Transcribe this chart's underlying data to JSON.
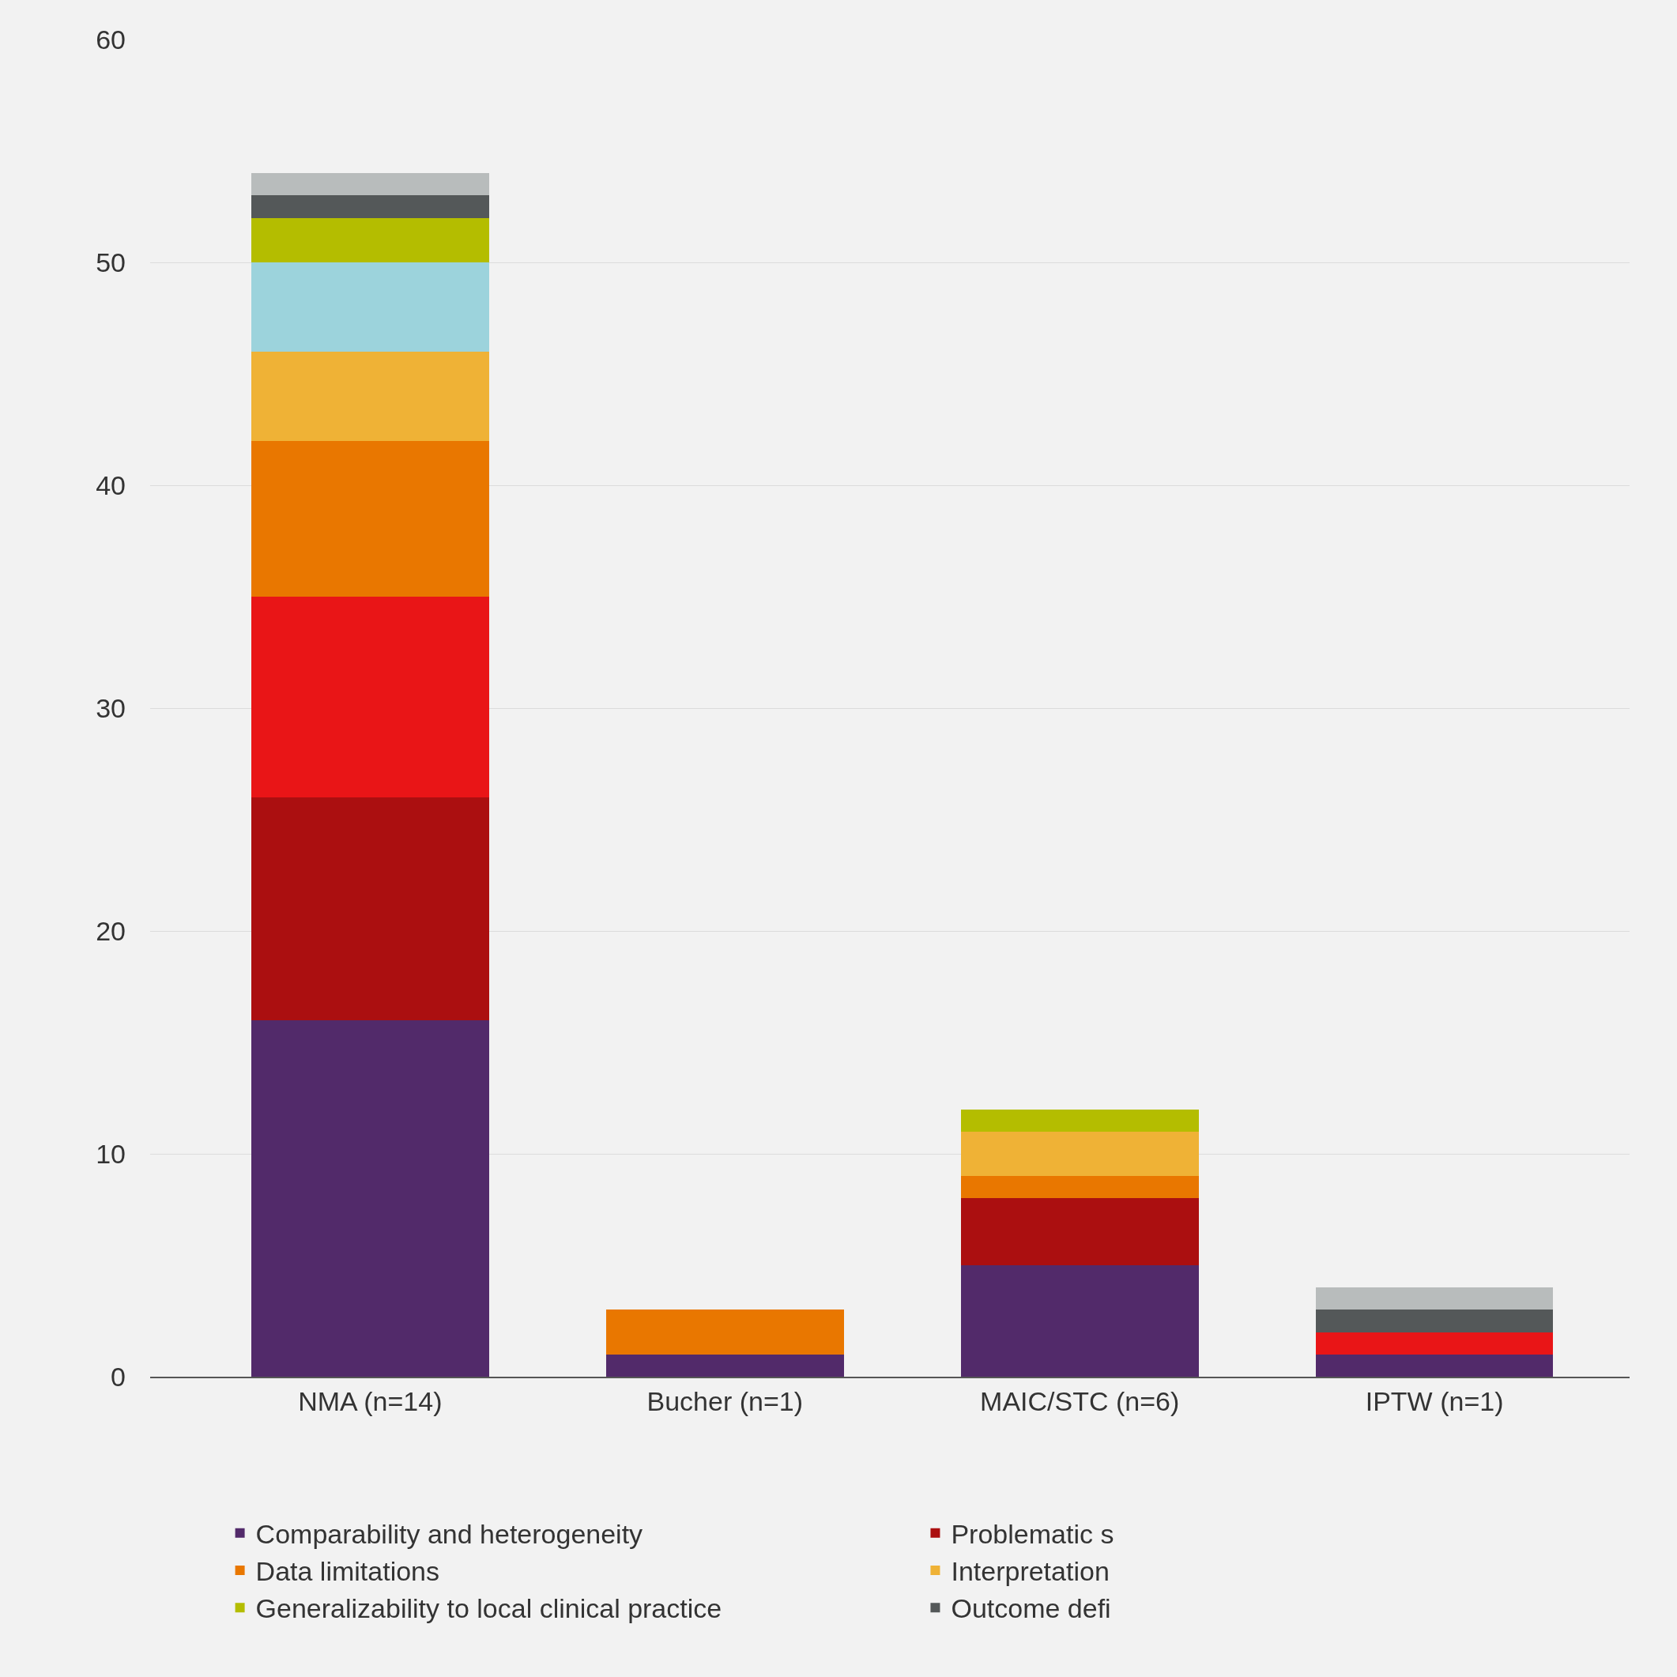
{
  "chart_data": {
    "type": "bar",
    "stacked": true,
    "categories": [
      "NMA (n=14)",
      "Bucher (n=1)",
      "MAIC/STC (n=6)",
      "IPTW (n=1)"
    ],
    "series": [
      {
        "name": "Comparability and heterogeneity",
        "color": "#522a6a",
        "values": [
          16,
          1,
          5,
          1
        ]
      },
      {
        "name": "Problematic s",
        "color": "#ab0f10",
        "values": [
          10,
          0,
          3,
          0
        ]
      },
      {
        "color": "#e91517",
        "values": [
          9,
          0,
          0,
          1
        ]
      },
      {
        "name": "Data limitations",
        "color": "#e97700",
        "values": [
          7,
          2,
          1,
          0
        ]
      },
      {
        "name": "Interpretation",
        "color": "#efb236",
        "values": [
          4,
          0,
          2,
          0
        ]
      },
      {
        "color": "#9cd3dc",
        "values": [
          4,
          0,
          0,
          0
        ]
      },
      {
        "name": "Generalizability to local clinical practice",
        "color": "#b4bd00",
        "values": [
          2,
          0,
          1,
          0
        ]
      },
      {
        "name": "Outcome defi",
        "color": "#545859",
        "values": [
          1,
          0,
          0,
          1
        ]
      },
      {
        "color": "#b8bcbc",
        "values": [
          1,
          0,
          0,
          1
        ]
      }
    ],
    "ylim": [
      0,
      60
    ],
    "yticks": [
      0,
      10,
      20,
      30,
      40,
      50,
      60
    ],
    "grid": "y",
    "legend": "bottom"
  }
}
